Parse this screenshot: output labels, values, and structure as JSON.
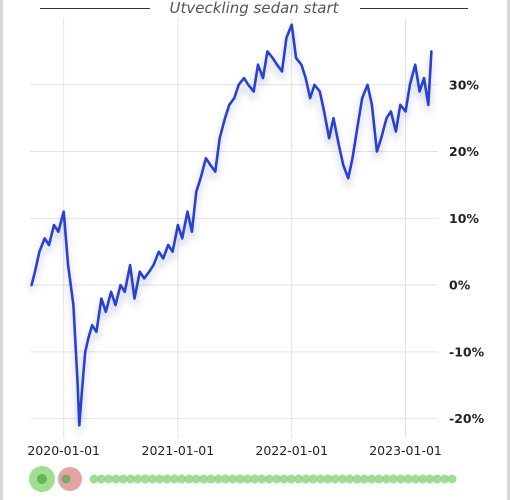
{
  "chart_data": {
    "type": "line",
    "title": "Utveckling sedan start",
    "xlabel": "",
    "ylabel": "",
    "ylim": [
      -22,
      40
    ],
    "xlim": [
      "2019-09-15",
      "2023-04-15"
    ],
    "x_ticks": [
      "2020-01-01",
      "2021-01-01",
      "2022-01-01",
      "2023-01-01"
    ],
    "y_ticks": [
      -20,
      -10,
      0,
      10,
      20,
      30
    ],
    "y_tick_format": "{v}%",
    "line_color": "#2a3fd1",
    "grid": true,
    "series": [
      {
        "x": [
          "2019-09-20",
          "2019-10-01",
          "2019-10-15",
          "2019-11-01",
          "2019-11-15",
          "2019-12-01",
          "2019-12-15",
          "2020-01-01",
          "2020-01-15",
          "2020-02-01",
          "2020-02-15",
          "2020-02-20",
          "2020-03-01",
          "2020-03-10",
          "2020-03-20",
          "2020-04-01",
          "2020-04-15",
          "2020-05-01",
          "2020-05-15",
          "2020-06-01",
          "2020-06-15",
          "2020-07-01",
          "2020-07-15",
          "2020-08-01",
          "2020-08-15",
          "2020-09-01",
          "2020-09-15",
          "2020-10-01",
          "2020-10-15",
          "2020-11-01",
          "2020-11-15",
          "2020-12-01",
          "2020-12-15",
          "2021-01-01",
          "2021-01-15",
          "2021-02-01",
          "2021-02-15",
          "2021-03-01",
          "2021-03-15",
          "2021-04-01",
          "2021-04-15",
          "2021-05-01",
          "2021-05-15",
          "2021-06-01",
          "2021-06-15",
          "2021-07-01",
          "2021-07-15",
          "2021-08-01",
          "2021-08-15",
          "2021-09-01",
          "2021-09-15",
          "2021-10-01",
          "2021-10-15",
          "2021-11-01",
          "2021-11-15",
          "2021-12-01",
          "2021-12-15",
          "2022-01-01",
          "2022-01-15",
          "2022-02-01",
          "2022-02-15",
          "2022-03-01",
          "2022-03-15",
          "2022-04-01",
          "2022-04-15",
          "2022-05-01",
          "2022-05-15",
          "2022-06-01",
          "2022-06-15",
          "2022-07-01",
          "2022-07-15",
          "2022-08-01",
          "2022-08-15",
          "2022-09-01",
          "2022-09-15",
          "2022-10-01",
          "2022-10-15",
          "2022-11-01",
          "2022-11-15",
          "2022-12-01",
          "2022-12-15",
          "2023-01-01",
          "2023-01-15",
          "2023-02-01",
          "2023-02-15",
          "2023-03-01",
          "2023-03-15",
          "2023-03-25"
        ],
        "values": [
          0,
          2,
          5,
          7,
          6,
          9,
          8,
          11,
          3,
          -3,
          -15,
          -21,
          -15,
          -10,
          -8,
          -6,
          -7,
          -2,
          -4,
          -1,
          -3,
          0,
          -1,
          3,
          -2,
          2,
          1,
          2,
          3,
          5,
          4,
          6,
          5,
          9,
          7,
          11,
          8,
          14,
          16,
          19,
          18,
          17,
          22,
          25,
          27,
          28,
          30,
          31,
          30,
          29,
          33,
          31,
          35,
          34,
          33,
          32,
          37,
          39,
          34,
          33,
          31,
          28,
          30,
          29,
          26,
          22,
          25,
          21,
          18,
          16,
          19,
          24,
          28,
          30,
          27,
          20,
          22,
          25,
          26,
          23,
          27,
          26,
          30,
          33,
          29,
          31,
          27,
          35
        ]
      }
    ]
  },
  "scroll_dots": {
    "active_colors": [
      "#9fdf8f",
      "#e6a3a3"
    ],
    "dot_color": "#8fd681",
    "count": 50
  }
}
